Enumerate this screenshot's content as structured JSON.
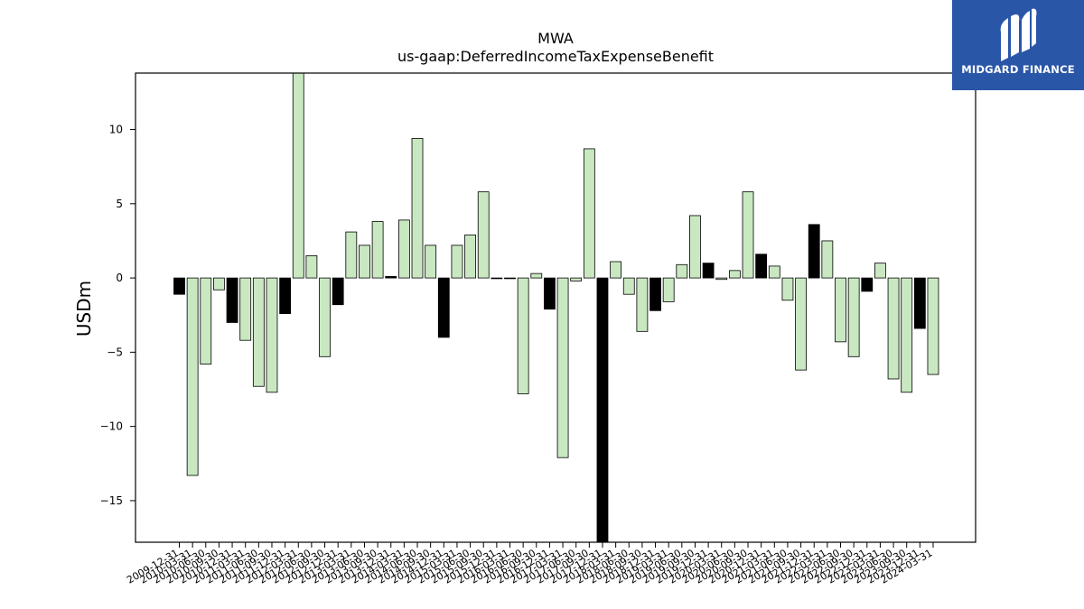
{
  "chart_data": {
    "type": "bar",
    "title": "MWA",
    "subtitle": "us-gaap:DeferredIncomeTaxExpenseBenefit",
    "xlabel": "",
    "ylabel": "USDm",
    "ylim": [
      -17.8,
      13.8
    ],
    "yticks": [
      10,
      5,
      0,
      -5,
      -10,
      -15
    ],
    "grid": false,
    "colors": {
      "positive_fill": "#c9e8c1",
      "negative_fill": "#c9e8c1",
      "highlight_fill": "#000000",
      "edge": "#000000"
    },
    "categories": [
      "2009-12-31",
      "2010-03-31",
      "2010-06-30",
      "2010-09-30",
      "2010-12-31",
      "2011-03-31",
      "2011-06-30",
      "2011-09-30",
      "2011-12-31",
      "2012-03-31",
      "2012-06-30",
      "2012-09-30",
      "2012-12-31",
      "2013-03-31",
      "2013-06-30",
      "2013-09-30",
      "2013-12-31",
      "2014-03-31",
      "2014-06-30",
      "2014-09-30",
      "2014-12-31",
      "2015-03-31",
      "2015-06-30",
      "2015-09-30",
      "2015-12-31",
      "2016-03-31",
      "2016-06-30",
      "2016-09-30",
      "2016-12-31",
      "2017-03-31",
      "2017-06-30",
      "2017-09-30",
      "2017-12-31",
      "2018-03-31",
      "2018-06-30",
      "2018-09-30",
      "2018-12-31",
      "2019-03-31",
      "2019-06-30",
      "2019-09-30",
      "2019-12-31",
      "2020-03-31",
      "2020-06-30",
      "2020-09-30",
      "2020-12-31",
      "2021-03-31",
      "2021-06-30",
      "2021-09-30",
      "2021-12-31",
      "2022-03-31",
      "2022-06-30",
      "2022-09-30",
      "2022-12-31",
      "2023-03-31",
      "2023-06-30",
      "2023-09-30",
      "2023-12-31",
      "2024-03-31"
    ],
    "values": [
      -1.1,
      -13.3,
      -5.8,
      -0.8,
      -3.0,
      -4.2,
      -7.3,
      -7.7,
      -2.4,
      13.8,
      1.5,
      -5.3,
      -1.8,
      3.1,
      2.2,
      3.8,
      0.1,
      3.9,
      9.4,
      2.2,
      -4.0,
      2.2,
      2.9,
      5.8,
      0.0,
      0.0,
      -7.8,
      0.3,
      -2.1,
      -12.1,
      -0.2,
      8.7,
      -17.8,
      1.1,
      -1.1,
      -3.6,
      -2.2,
      -1.6,
      0.9,
      4.2,
      1.0,
      -0.1,
      0.5,
      5.8,
      1.6,
      0.8,
      -1.5,
      -6.2,
      3.6,
      2.5,
      -4.3,
      -5.3,
      -0.9,
      1.0,
      -6.8,
      -7.7,
      -3.4,
      -6.5
    ],
    "highlight": [
      true,
      false,
      false,
      false,
      true,
      false,
      false,
      false,
      true,
      false,
      false,
      false,
      true,
      false,
      false,
      false,
      true,
      false,
      false,
      false,
      true,
      false,
      false,
      false,
      true,
      false,
      false,
      false,
      true,
      false,
      false,
      false,
      true,
      false,
      false,
      false,
      true,
      false,
      false,
      false,
      true,
      false,
      false,
      false,
      true,
      false,
      false,
      false,
      true,
      false,
      false,
      false,
      true,
      false,
      false,
      false,
      true,
      false
    ]
  },
  "logo": {
    "text": "MIDGARD FINANCE"
  }
}
